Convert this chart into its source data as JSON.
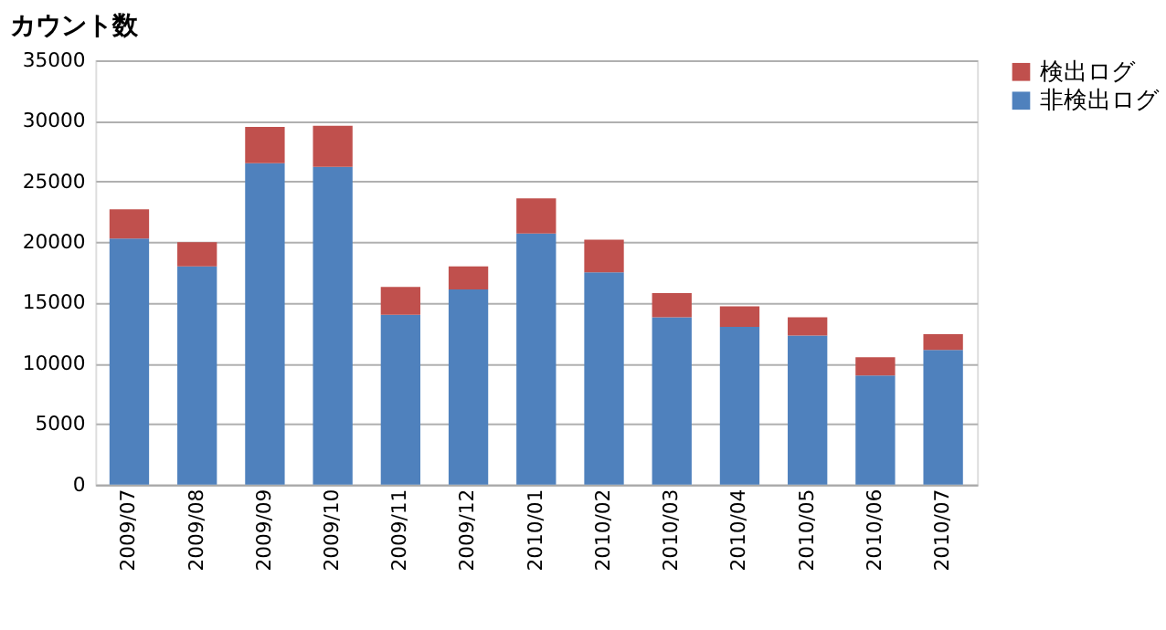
{
  "chart_data": {
    "type": "bar",
    "ylabel": "カウント数",
    "stacked": true,
    "categories": [
      "2009/07",
      "2009/08",
      "2009/09",
      "2009/10",
      "2009/11",
      "2009/12",
      "2010/01",
      "2010/02",
      "2010/03",
      "2010/04",
      "2010/05",
      "2010/06",
      "2010/07"
    ],
    "series": [
      {
        "name": "非検出ログ",
        "color": "#4f81bd",
        "values": [
          20300,
          18000,
          26500,
          26200,
          14000,
          16100,
          20700,
          17500,
          13800,
          13000,
          12300,
          9000,
          11100
        ]
      },
      {
        "name": "検出ログ",
        "color": "#c0504d",
        "values": [
          2400,
          2000,
          3000,
          3400,
          2300,
          1900,
          2900,
          2700,
          2000,
          1700,
          1500,
          1500,
          1300
        ]
      }
    ],
    "ylim": [
      0,
      35000
    ],
    "yticks": [
      0,
      5000,
      10000,
      15000,
      20000,
      25000,
      30000,
      35000
    ],
    "grid": "y",
    "legend": "right"
  }
}
